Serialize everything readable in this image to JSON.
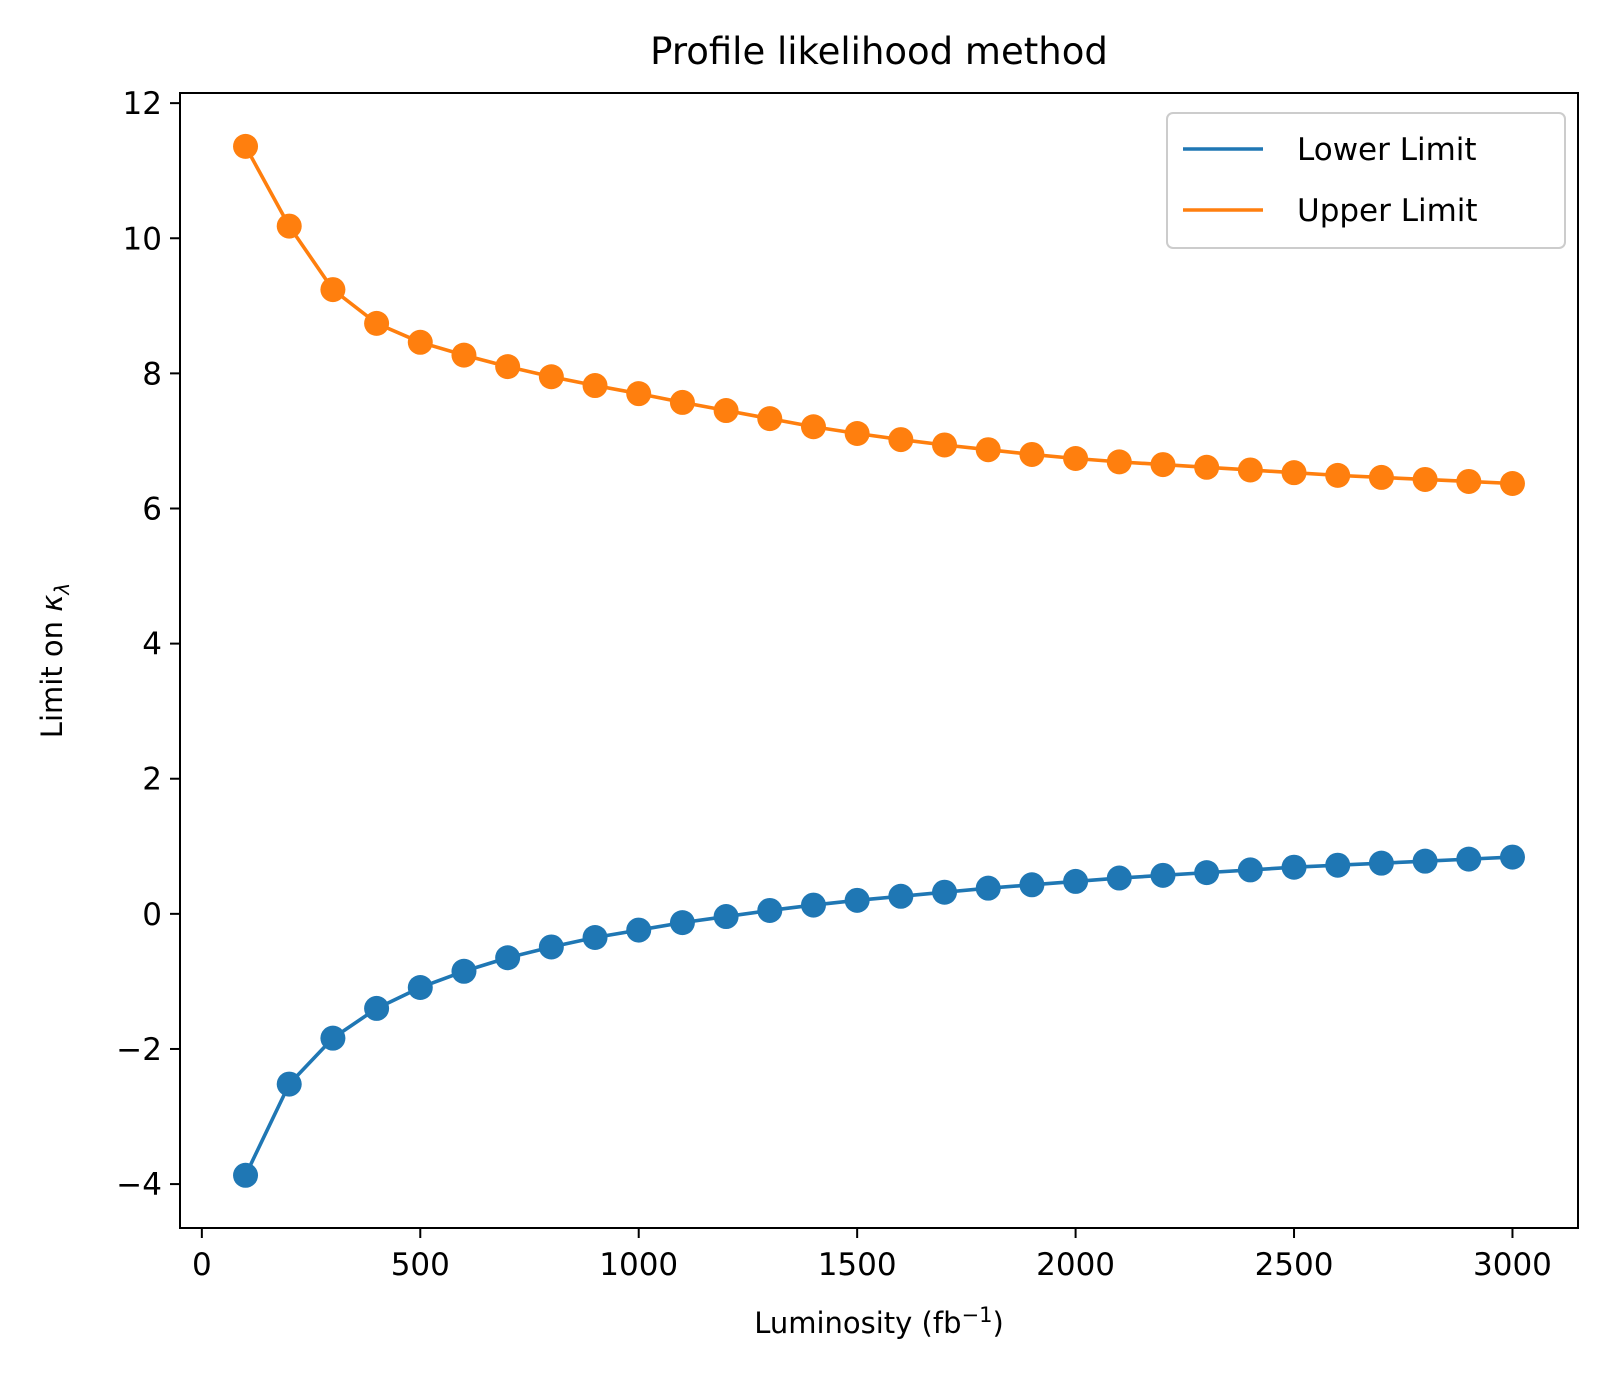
{
  "chart_data": {
    "type": "line",
    "title": "Profile likelihood method",
    "xlabel": "Luminosity (fb",
    "xlabel_sup": "−1",
    "xlabel_close": ")",
    "ylabel": "Limit on ",
    "ylabel_symbol": "κ",
    "ylabel_sub": "λ",
    "xlim": [
      -50,
      3150
    ],
    "ylim": [
      -4.65,
      12.15
    ],
    "xticks": [
      0,
      500,
      1000,
      1500,
      2000,
      2500,
      3000
    ],
    "xtick_labels": [
      "0",
      "500",
      "1000",
      "1500",
      "2000",
      "2500",
      "3000"
    ],
    "yticks": [
      -4,
      -2,
      0,
      2,
      4,
      6,
      8,
      10,
      12
    ],
    "ytick_labels": [
      "−4",
      "−2",
      "0",
      "2",
      "4",
      "6",
      "8",
      "10",
      "12"
    ],
    "grid": false,
    "legend_position": "top-right",
    "x": [
      100,
      200,
      300,
      400,
      500,
      600,
      700,
      800,
      900,
      1000,
      1100,
      1200,
      1300,
      1400,
      1500,
      1600,
      1700,
      1800,
      1900,
      2000,
      2100,
      2200,
      2300,
      2400,
      2500,
      2600,
      2700,
      2800,
      2900,
      3000
    ],
    "series": [
      {
        "name": "Lower Limit",
        "color": "#1f77b4",
        "marker": "circle",
        "values": [
          -3.87,
          -2.52,
          -1.84,
          -1.4,
          -1.09,
          -0.85,
          -0.65,
          -0.49,
          -0.35,
          -0.24,
          -0.13,
          -0.04,
          0.05,
          0.13,
          0.2,
          0.26,
          0.32,
          0.38,
          0.43,
          0.48,
          0.53,
          0.57,
          0.61,
          0.65,
          0.69,
          0.72,
          0.75,
          0.78,
          0.81,
          0.84
        ]
      },
      {
        "name": "Upper Limit",
        "color": "#ff7f0e",
        "marker": "circle",
        "values": [
          11.36,
          10.18,
          9.24,
          8.74,
          8.46,
          8.27,
          8.1,
          7.95,
          7.82,
          7.7,
          7.57,
          7.45,
          7.33,
          7.21,
          7.11,
          7.02,
          6.94,
          6.87,
          6.8,
          6.74,
          6.69,
          6.65,
          6.61,
          6.57,
          6.53,
          6.49,
          6.46,
          6.43,
          6.4,
          6.37
        ]
      }
    ]
  }
}
